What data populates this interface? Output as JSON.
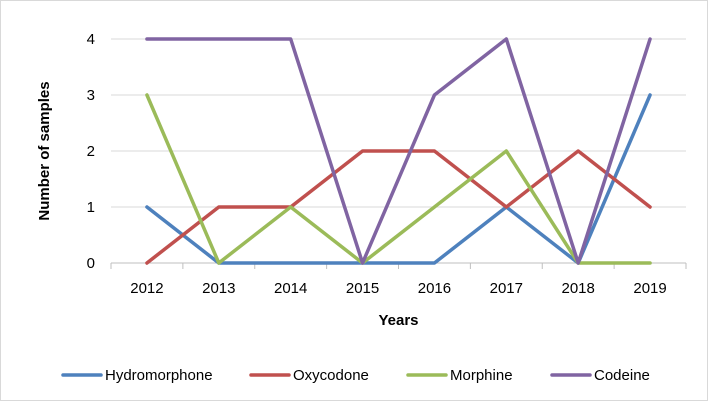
{
  "chart_data": {
    "type": "line",
    "title": "",
    "xlabel": "Years",
    "ylabel": "Number of samples",
    "x": [
      "2012",
      "2013",
      "2014",
      "2015",
      "2016",
      "2017",
      "2018",
      "2019"
    ],
    "ylim": [
      0,
      4
    ],
    "yticks": [
      "0",
      "1",
      "2",
      "3",
      "4"
    ],
    "grid": "horizontal",
    "legend_position": "bottom",
    "series": [
      {
        "name": "Hydromorphone",
        "color": "#4e81bd",
        "values": [
          1,
          0,
          0,
          0,
          0,
          1,
          0,
          3
        ]
      },
      {
        "name": "Oxycodone",
        "color": "#c0504e",
        "values": [
          0,
          1,
          1,
          2,
          2,
          1,
          2,
          1
        ]
      },
      {
        "name": "Morphine",
        "color": "#9bbb59",
        "values": [
          3,
          0,
          1,
          0,
          1,
          2,
          0,
          0
        ]
      },
      {
        "name": "Codeine",
        "color": "#8064a2",
        "values": [
          4,
          4,
          4,
          0,
          3,
          4,
          0,
          4
        ]
      }
    ]
  }
}
